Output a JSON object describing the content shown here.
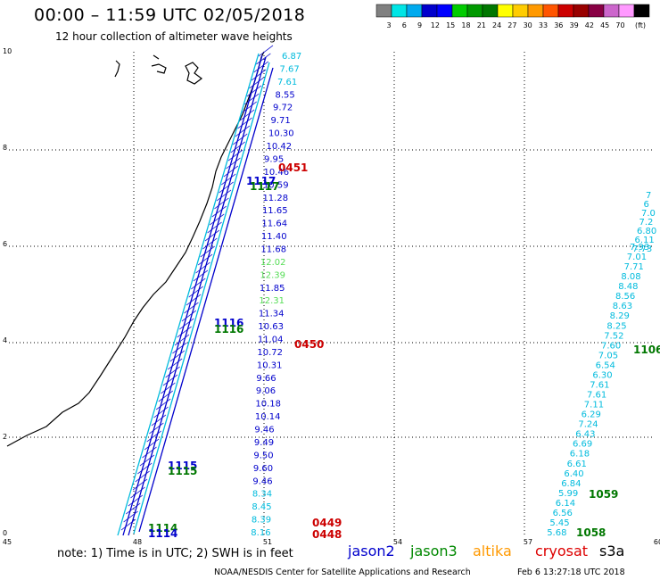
{
  "header": {
    "title": "00:00 – 11:59 UTC 02/05/2018",
    "subtitle": "12 hour collection of altimeter wave heights"
  },
  "colorbar": {
    "unit": "(ft)",
    "colors": [
      "#808080",
      "#00e5e5",
      "#00aaee",
      "#0000cc",
      "#0000ff",
      "#00cc00",
      "#009900",
      "#007700",
      "#ffff00",
      "#ffcc00",
      "#ff9900",
      "#ff5500",
      "#cc0000",
      "#990000",
      "#880044",
      "#cc66cc",
      "#ff99ff",
      "#000000"
    ],
    "labels": [
      "3",
      "6",
      "9",
      "12",
      "15",
      "18",
      "21",
      "24",
      "27",
      "30",
      "33",
      "36",
      "39",
      "42",
      "45",
      "70"
    ]
  },
  "axes": {
    "x_ticks": [
      "45",
      "48",
      "51",
      "54",
      "57",
      "60"
    ],
    "y_ticks": [
      "0",
      "2",
      "4",
      "6",
      "8",
      "10"
    ]
  },
  "swath_colors": {
    "jason2": "#0000cc",
    "jason3": "#007700",
    "altika": "#ee8800",
    "cryosat": "#cc0000",
    "s3a": "#000000",
    "cyan": "#00bbdd",
    "light": "#55dd55"
  },
  "tracks": {
    "center_values": [
      {
        "t": "6.87",
        "c": "cyan"
      },
      {
        "t": "7.67",
        "c": "cyan"
      },
      {
        "t": "7.61",
        "c": "cyan"
      },
      {
        "t": "8.55",
        "c": "jason2"
      },
      {
        "t": "9.72",
        "c": "jason2"
      },
      {
        "t": "9.71",
        "c": "jason2"
      },
      {
        "t": "10.30",
        "c": "jason2"
      },
      {
        "t": "10.42",
        "c": "jason2"
      },
      {
        "t": "9.95",
        "c": "jason2"
      },
      {
        "t": "10.46",
        "c": "jason2"
      },
      {
        "t": "10.59",
        "c": "jason2"
      },
      {
        "t": "11.28",
        "c": "jason2"
      },
      {
        "t": "11.65",
        "c": "jason2"
      },
      {
        "t": "11.64",
        "c": "jason2"
      },
      {
        "t": "11.40",
        "c": "jason2"
      },
      {
        "t": "11.68",
        "c": "jason2"
      },
      {
        "t": "12.02",
        "c": "light"
      },
      {
        "t": "12.39",
        "c": "light"
      },
      {
        "t": "11.85",
        "c": "jason2"
      },
      {
        "t": "12.31",
        "c": "light"
      },
      {
        "t": "11.34",
        "c": "jason2"
      },
      {
        "t": "10.63",
        "c": "jason2"
      },
      {
        "t": "11.04",
        "c": "jason2"
      },
      {
        "t": "10.72",
        "c": "jason2"
      },
      {
        "t": "10.31",
        "c": "jason2"
      },
      {
        "t": "9.66",
        "c": "jason2"
      },
      {
        "t": "9.06",
        "c": "jason2"
      },
      {
        "t": "10.18",
        "c": "jason2"
      },
      {
        "t": "10.14",
        "c": "jason2"
      },
      {
        "t": "9.46",
        "c": "jason2"
      },
      {
        "t": "9.49",
        "c": "jason2"
      },
      {
        "t": "9.50",
        "c": "jason2"
      },
      {
        "t": "9.60",
        "c": "jason2"
      },
      {
        "t": "9.46",
        "c": "jason2"
      },
      {
        "t": "8.34",
        "c": "cyan"
      },
      {
        "t": "8.45",
        "c": "cyan"
      },
      {
        "t": "8.39",
        "c": "cyan"
      },
      {
        "t": "8.16",
        "c": "cyan"
      }
    ],
    "right_values": [
      "7.93",
      "7.01",
      "7.71",
      "8.08",
      "8.48",
      "8.56",
      "8.63",
      "8.29",
      "8.25",
      "7.52",
      "7.60",
      "7.05",
      "6.54",
      "6.30",
      "7.61",
      "7.61",
      "7.11",
      "6.29",
      "7.24",
      "6.43",
      "6.69",
      "6.18",
      "6.61",
      "6.40",
      "6.84",
      "5.99",
      "6.14",
      "6.56",
      "5.45",
      "5.68"
    ],
    "right_edge": [
      "7",
      "6",
      "7.0",
      "7.2",
      "6.80",
      "6.11",
      "7.73"
    ],
    "pass_times": [
      {
        "t": "0451",
        "c": "cryosat"
      },
      {
        "t": "1117",
        "c": "jason2"
      },
      {
        "t": "1117",
        "c": "jason3"
      },
      {
        "t": "1116",
        "c": "jason2"
      },
      {
        "t": "1116",
        "c": "jason3"
      },
      {
        "t": "0450",
        "c": "cryosat"
      },
      {
        "t": "1115",
        "c": "jason2"
      },
      {
        "t": "1115",
        "c": "jason3"
      },
      {
        "t": "1114",
        "c": "jason3"
      },
      {
        "t": "1114",
        "c": "jason2"
      },
      {
        "t": "0449",
        "c": "cryosat"
      },
      {
        "t": "0448",
        "c": "cryosat"
      },
      {
        "t": "1106",
        "c": "jason3"
      },
      {
        "t": "1059",
        "c": "jason3"
      },
      {
        "t": "1058",
        "c": "jason3"
      }
    ]
  },
  "footer": {
    "note": "note:  1) Time is in UTC;  2) SWH is in feet",
    "satellites": [
      {
        "name": "jason2",
        "color": "#0000cc"
      },
      {
        "name": "jason3",
        "color": "#008800"
      },
      {
        "name": "altika",
        "color": "#ff9900"
      },
      {
        "name": "cryosat",
        "color": "#dd0000"
      },
      {
        "name": "s3a",
        "color": "#000000"
      }
    ],
    "credit": "NOAA/NESDIS Center for Satellite Applications and Research",
    "timestamp": "Feb  6 13:27:18 UTC 2018"
  }
}
